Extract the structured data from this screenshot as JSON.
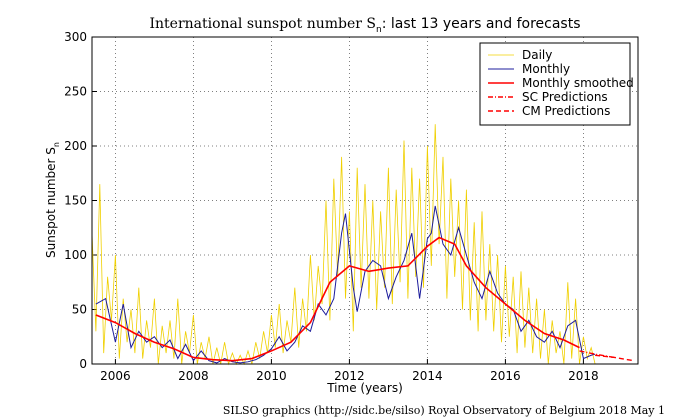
{
  "chart_data": {
    "type": "line",
    "title": [
      "International sunspot number S",
      "n",
      ": last 13 years and forecasts"
    ],
    "y_label": [
      "Sunspot number S",
      "n"
    ],
    "x_label": "Time (years)",
    "footer": "SILSO graphics (http://sidc.be/silso)  Royal Observatory of Belgium  2018 May 1",
    "xlim": [
      2005.4,
      2019.4
    ],
    "xticks": [
      2006,
      2008,
      2010,
      2012,
      2014,
      2016,
      2018
    ],
    "ylim": [
      0,
      300
    ],
    "yticks": [
      0,
      50,
      100,
      150,
      200,
      250,
      300
    ],
    "grid": true,
    "legend": "upper right",
    "series": [
      {
        "name": "Daily",
        "color": "#f0d000",
        "style": "solid",
        "width": 0.8,
        "x": [
          2005.4,
          2005.5,
          2005.6,
          2005.7,
          2005.8,
          2005.9,
          2006.0,
          2006.1,
          2006.2,
          2006.3,
          2006.4,
          2006.5,
          2006.6,
          2006.7,
          2006.8,
          2006.9,
          2007.0,
          2007.1,
          2007.2,
          2007.3,
          2007.4,
          2007.5,
          2007.6,
          2007.7,
          2007.8,
          2007.9,
          2008.0,
          2008.1,
          2008.2,
          2008.3,
          2008.4,
          2008.5,
          2008.6,
          2008.7,
          2008.8,
          2008.9,
          2009.0,
          2009.1,
          2009.2,
          2009.3,
          2009.4,
          2009.5,
          2009.6,
          2009.7,
          2009.8,
          2009.9,
          2010.0,
          2010.1,
          2010.2,
          2010.3,
          2010.4,
          2010.5,
          2010.6,
          2010.7,
          2010.8,
          2010.9,
          2011.0,
          2011.1,
          2011.2,
          2011.3,
          2011.4,
          2011.5,
          2011.6,
          2011.7,
          2011.8,
          2011.9,
          2012.0,
          2012.1,
          2012.2,
          2012.3,
          2012.4,
          2012.5,
          2012.6,
          2012.7,
          2012.8,
          2012.9,
          2013.0,
          2013.1,
          2013.2,
          2013.3,
          2013.4,
          2013.5,
          2013.6,
          2013.7,
          2013.8,
          2013.9,
          2014.0,
          2014.1,
          2014.2,
          2014.3,
          2014.4,
          2014.5,
          2014.6,
          2014.7,
          2014.8,
          2014.9,
          2015.0,
          2015.1,
          2015.2,
          2015.3,
          2015.4,
          2015.5,
          2015.6,
          2015.7,
          2015.8,
          2015.9,
          2016.0,
          2016.1,
          2016.2,
          2016.3,
          2016.4,
          2016.5,
          2016.6,
          2016.7,
          2016.8,
          2016.9,
          2017.0,
          2017.1,
          2017.2,
          2017.3,
          2017.4,
          2017.5,
          2017.6,
          2017.7,
          2017.8,
          2017.9,
          2018.0,
          2018.1,
          2018.2,
          2018.3
        ],
        "values": [
          120,
          30,
          165,
          10,
          80,
          40,
          100,
          5,
          60,
          20,
          50,
          10,
          70,
          5,
          40,
          15,
          60,
          0,
          35,
          10,
          40,
          5,
          60,
          0,
          30,
          10,
          45,
          0,
          20,
          5,
          25,
          0,
          15,
          0,
          20,
          0,
          10,
          0,
          8,
          0,
          12,
          0,
          20,
          5,
          30,
          10,
          45,
          15,
          55,
          10,
          40,
          20,
          70,
          15,
          60,
          30,
          100,
          40,
          90,
          55,
          150,
          40,
          170,
          80,
          190,
          60,
          140,
          30,
          180,
          70,
          165,
          60,
          150,
          50,
          140,
          70,
          180,
          55,
          160,
          75,
          205,
          60,
          180,
          80,
          170,
          70,
          200,
          90,
          220,
          110,
          190,
          60,
          170,
          80,
          150,
          50,
          160,
          40,
          130,
          30,
          140,
          40,
          110,
          30,
          100,
          20,
          90,
          25,
          80,
          10,
          85,
          15,
          70,
          10,
          60,
          5,
          50,
          0,
          40,
          10,
          30,
          0,
          75,
          5,
          60,
          0,
          25,
          5,
          15,
          0
        ]
      },
      {
        "name": "Monthly",
        "color": "#1c1c9c",
        "style": "solid",
        "width": 1,
        "x": [
          2005.5,
          2005.75,
          2006,
          2006.2,
          2006.4,
          2006.6,
          2006.8,
          2007,
          2007.2,
          2007.4,
          2007.6,
          2007.8,
          2008,
          2008.2,
          2008.4,
          2008.6,
          2008.8,
          2009,
          2009.2,
          2009.4,
          2009.6,
          2009.8,
          2010,
          2010.2,
          2010.4,
          2010.6,
          2010.8,
          2011,
          2011.2,
          2011.4,
          2011.6,
          2011.8,
          2011.9,
          2012.1,
          2012.2,
          2012.4,
          2012.6,
          2012.8,
          2013,
          2013.2,
          2013.4,
          2013.6,
          2013.8,
          2014,
          2014.1,
          2014.2,
          2014.4,
          2014.6,
          2014.8,
          2015,
          2015.2,
          2015.4,
          2015.6,
          2015.8,
          2016,
          2016.2,
          2016.4,
          2016.6,
          2016.8,
          2017,
          2017.2,
          2017.4,
          2017.6,
          2017.8,
          2018,
          2018.2,
          2018.3
        ],
        "values": [
          55,
          60,
          20,
          55,
          15,
          30,
          20,
          25,
          15,
          22,
          5,
          18,
          3,
          12,
          3,
          1,
          5,
          2,
          1,
          2,
          4,
          8,
          14,
          25,
          12,
          20,
          35,
          30,
          55,
          45,
          60,
          120,
          138,
          70,
          48,
          85,
          95,
          90,
          60,
          80,
          95,
          120,
          60,
          115,
          120,
          145,
          110,
          100,
          125,
          100,
          75,
          60,
          85,
          65,
          55,
          50,
          30,
          40,
          25,
          20,
          30,
          15,
          35,
          40,
          5,
          8,
          9
        ]
      },
      {
        "name": "Monthly smoothed",
        "color": "#ff0000",
        "style": "solid",
        "width": 1.6,
        "x": [
          2005.5,
          2006,
          2006.5,
          2007,
          2007.5,
          2008,
          2008.5,
          2009,
          2009.5,
          2010,
          2010.5,
          2011,
          2011.5,
          2012,
          2012.5,
          2013,
          2013.5,
          2014,
          2014.3,
          2014.7,
          2015,
          2015.5,
          2016,
          2016.5,
          2017,
          2017.5,
          2017.9
        ],
        "values": [
          45,
          38,
          28,
          20,
          14,
          6,
          4,
          3,
          5,
          12,
          20,
          38,
          75,
          90,
          85,
          88,
          90,
          108,
          116,
          110,
          90,
          70,
          55,
          40,
          28,
          22,
          15
        ]
      },
      {
        "name": "SC Predictions",
        "color": "#ff0000",
        "style": "dashdot",
        "width": 1.4,
        "x": [
          2017.9,
          2018.3,
          2018.8
        ],
        "values": [
          12,
          9,
          6
        ]
      },
      {
        "name": "CM Predictions",
        "color": "#ff0000",
        "style": "dashed",
        "width": 1.4,
        "x": [
          2018.3,
          2018.8,
          2019.3
        ],
        "values": [
          8,
          6,
          3
        ]
      }
    ]
  }
}
